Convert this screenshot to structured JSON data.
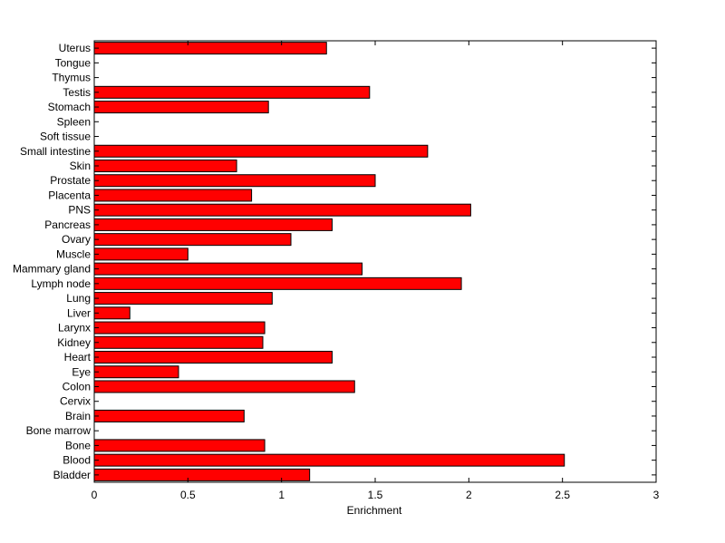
{
  "chart_data": {
    "type": "bar",
    "orientation": "horizontal",
    "categories": [
      "Bladder",
      "Blood",
      "Bone",
      "Bone marrow",
      "Brain",
      "Cervix",
      "Colon",
      "Eye",
      "Heart",
      "Kidney",
      "Larynx",
      "Liver",
      "Lung",
      "Lymph node",
      "Mammary gland",
      "Muscle",
      "Ovary",
      "Pancreas",
      "PNS",
      "Placenta",
      "Prostate",
      "Skin",
      "Small intestine",
      "Soft tissue",
      "Spleen",
      "Stomach",
      "Testis",
      "Thymus",
      "Tongue",
      "Uterus"
    ],
    "values": [
      1.15,
      2.51,
      0.91,
      0,
      0.8,
      0,
      1.39,
      0.45,
      1.27,
      0.9,
      0.91,
      0.19,
      0.95,
      1.96,
      1.43,
      0.5,
      1.05,
      1.27,
      2.01,
      0.84,
      1.5,
      0.76,
      1.78,
      0,
      0,
      0.93,
      1.47,
      0,
      0,
      1.24
    ],
    "xlabel": "Enrichment",
    "ylabel": "",
    "title": "",
    "xlim": [
      0,
      3
    ],
    "xticks": [
      "0",
      "0.5",
      "1",
      "1.5",
      "2",
      "2.5",
      "3"
    ],
    "grid": false,
    "legend": "none",
    "bar_color": "#ff0000",
    "bar_edge_color": "#000000"
  }
}
